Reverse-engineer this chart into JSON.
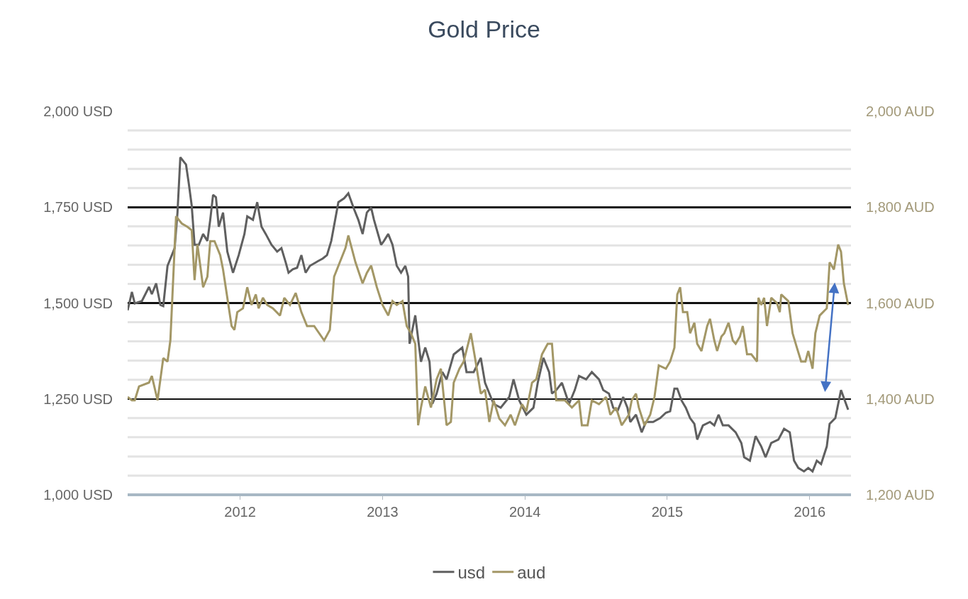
{
  "chart_data": {
    "type": "line",
    "title": "Gold Price",
    "x": [
      2011.21,
      2011.24,
      2011.26,
      2011.31,
      2011.36,
      2011.38,
      2011.41,
      2011.44,
      2011.46,
      2011.49,
      2011.54,
      2011.56,
      2011.58,
      2011.62,
      2011.64,
      2011.66,
      2011.68,
      2011.71,
      2011.74,
      2011.77,
      2011.79,
      2011.81,
      2011.83,
      2011.85,
      2011.88,
      2011.91,
      2011.95,
      2011.99,
      2012.03,
      2012.05,
      2012.09,
      2012.12,
      2012.15,
      2012.18,
      2012.22,
      2012.26,
      2012.29,
      2012.32,
      2012.34,
      2012.37,
      2012.4,
      2012.43,
      2012.46,
      2012.49,
      2012.55,
      2012.58,
      2012.61,
      2012.64,
      2012.69,
      2012.73,
      2012.76,
      2012.8,
      2012.83,
      2012.86,
      2012.89,
      2012.92,
      2012.94,
      2012.99,
      2013.01,
      2013.04,
      2013.07,
      2013.1,
      2013.13,
      2013.16,
      2013.18,
      2013.19,
      2013.23,
      2013.27,
      2013.3,
      2013.33,
      2013.35,
      2013.38,
      2013.42,
      2013.45,
      2013.5,
      2013.56,
      2013.59,
      2013.64,
      2013.69,
      2013.72,
      2013.78,
      2013.83,
      2013.89,
      2013.92,
      2013.96,
      2014.01,
      2014.06,
      2014.09,
      2014.13,
      2014.17,
      2014.19,
      2014.22,
      2014.26,
      2014.31,
      2014.35,
      2014.38,
      2014.43,
      2014.47,
      2014.52,
      2014.55,
      2014.59,
      2014.62,
      2014.65,
      2014.69,
      2014.72,
      2014.74,
      2014.78,
      2014.82,
      2014.85,
      2014.9,
      2014.95,
      2014.99,
      2015.02,
      2015.05,
      2015.07,
      2015.1,
      2015.13,
      2015.16,
      2015.19,
      2015.21,
      2015.25,
      2015.3,
      2015.33,
      2015.36,
      2015.39,
      2015.43,
      2015.48,
      2015.52,
      2015.54,
      2015.58,
      2015.62,
      2015.66,
      2015.69,
      2015.73,
      2015.78,
      2015.82,
      2015.86,
      2015.89,
      2015.92,
      2015.96,
      2015.99,
      2016.02,
      2016.05,
      2016.08,
      2016.12,
      2016.14,
      2016.18,
      2016.22,
      2016.27
    ],
    "series": [
      {
        "name": "usd",
        "color": "#5f5f5f",
        "values": [
          1481,
          1529,
          1499,
          1505,
          1542,
          1523,
          1551,
          1495,
          1492,
          1597,
          1643,
          1736,
          1880,
          1861,
          1810,
          1754,
          1652,
          1652,
          1680,
          1662,
          1717,
          1782,
          1776,
          1699,
          1736,
          1634,
          1579,
          1625,
          1680,
          1726,
          1717,
          1763,
          1699,
          1680,
          1652,
          1634,
          1643,
          1606,
          1579,
          1588,
          1592,
          1625,
          1579,
          1597,
          1610,
          1616,
          1625,
          1662,
          1763,
          1773,
          1786,
          1745,
          1717,
          1680,
          1736,
          1749,
          1717,
          1652,
          1662,
          1680,
          1652,
          1597,
          1579,
          1597,
          1569,
          1394,
          1468,
          1347,
          1384,
          1347,
          1237,
          1264,
          1320,
          1301,
          1366,
          1384,
          1320,
          1320,
          1357,
          1292,
          1237,
          1227,
          1255,
          1301,
          1246,
          1209,
          1227,
          1292,
          1357,
          1320,
          1264,
          1273,
          1292,
          1237,
          1273,
          1310,
          1301,
          1320,
          1301,
          1273,
          1264,
          1227,
          1218,
          1255,
          1227,
          1190,
          1209,
          1163,
          1190,
          1190,
          1200,
          1214,
          1218,
          1277,
          1277,
          1246,
          1227,
          1200,
          1185,
          1144,
          1181,
          1190,
          1181,
          1209,
          1181,
          1181,
          1163,
          1135,
          1098,
          1089,
          1153,
          1126,
          1098,
          1135,
          1144,
          1172,
          1163,
          1089,
          1070,
          1061,
          1070,
          1061,
          1089,
          1080,
          1126,
          1185,
          1200,
          1273,
          1222
        ]
      },
      {
        "name": "aud",
        "color": "#a39766",
        "axis": "y2",
        "x": [
          2011.21,
          2011.24,
          2011.26,
          2011.29,
          2011.36,
          2011.38,
          2011.42,
          2011.46,
          2011.49,
          2011.51,
          2011.55,
          2011.59,
          2011.63,
          2011.66,
          2011.68,
          2011.7,
          2011.72,
          2011.74,
          2011.77,
          2011.79,
          2011.82,
          2011.86,
          2011.88,
          2011.91,
          2011.94,
          2011.96,
          2011.98,
          2012.02,
          2012.05,
          2012.08,
          2012.11,
          2012.13,
          2012.16,
          2012.19,
          2012.23,
          2012.28,
          2012.31,
          2012.35,
          2012.39,
          2012.43,
          2012.47,
          2012.52,
          2012.59,
          2012.63,
          2012.66,
          2012.7,
          2012.74,
          2012.76,
          2012.81,
          2012.86,
          2012.89,
          2012.92,
          2012.96,
          2013.0,
          2013.04,
          2013.07,
          2013.1,
          2013.14,
          2013.17,
          2013.2,
          2013.23,
          2013.25,
          2013.27,
          2013.3,
          2013.34,
          2013.38,
          2013.41,
          2013.45,
          2013.48,
          2013.5,
          2013.54,
          2013.57,
          2013.62,
          2013.65,
          2013.69,
          2013.72,
          2013.75,
          2013.78,
          2013.82,
          2013.86,
          2013.9,
          2013.93,
          2013.98,
          2014.01,
          2014.05,
          2014.08,
          2014.12,
          2014.16,
          2014.19,
          2014.22,
          2014.28,
          2014.33,
          2014.38,
          2014.4,
          2014.44,
          2014.47,
          2014.52,
          2014.57,
          2014.6,
          2014.64,
          2014.68,
          2014.73,
          2014.75,
          2014.78,
          2014.8,
          2014.84,
          2014.88,
          2014.91,
          2014.94,
          2014.99,
          2015.02,
          2015.05,
          2015.07,
          2015.09,
          2015.11,
          2015.14,
          2015.16,
          2015.19,
          2015.21,
          2015.24,
          2015.28,
          2015.3,
          2015.33,
          2015.35,
          2015.38,
          2015.4,
          2015.43,
          2015.46,
          2015.48,
          2015.51,
          2015.53,
          2015.56,
          2015.59,
          2015.63,
          2015.64,
          2015.66,
          2015.68,
          2015.7,
          2015.73,
          2015.77,
          2015.79,
          2015.8,
          2015.85,
          2015.88,
          2015.91,
          2015.94,
          2015.97,
          2015.99,
          2016.02,
          2016.04,
          2016.07,
          2016.12,
          2016.14,
          2016.17,
          2016.2,
          2016.22,
          2016.24,
          2016.27
        ],
        "values": [
          1404,
          1397,
          1397,
          1426,
          1434,
          1448,
          1397,
          1485,
          1478,
          1522,
          1781,
          1766,
          1759,
          1752,
          1648,
          1722,
          1678,
          1633,
          1655,
          1729,
          1729,
          1700,
          1670,
          1611,
          1552,
          1544,
          1581,
          1589,
          1633,
          1596,
          1618,
          1589,
          1611,
          1596,
          1589,
          1574,
          1611,
          1596,
          1621,
          1581,
          1552,
          1552,
          1522,
          1544,
          1655,
          1685,
          1715,
          1741,
          1685,
          1641,
          1663,
          1678,
          1633,
          1596,
          1574,
          1604,
          1596,
          1604,
          1552,
          1537,
          1515,
          1345,
          1382,
          1426,
          1382,
          1441,
          1463,
          1345,
          1352,
          1434,
          1463,
          1478,
          1537,
          1485,
          1411,
          1419,
          1352,
          1397,
          1359,
          1345,
          1367,
          1345,
          1389,
          1374,
          1434,
          1441,
          1493,
          1515,
          1515,
          1397,
          1397,
          1382,
          1397,
          1345,
          1345,
          1397,
          1389,
          1404,
          1367,
          1382,
          1345,
          1367,
          1397,
          1411,
          1382,
          1345,
          1367,
          1404,
          1470,
          1463,
          1478,
          1507,
          1618,
          1633,
          1581,
          1581,
          1537,
          1559,
          1515,
          1500,
          1552,
          1567,
          1522,
          1500,
          1530,
          1537,
          1559,
          1522,
          1515,
          1530,
          1552,
          1493,
          1493,
          1478,
          1611,
          1596,
          1611,
          1552,
          1611,
          1600,
          1581,
          1618,
          1604,
          1537,
          1507,
          1478,
          1478,
          1500,
          1463,
          1537,
          1574,
          1589,
          1685,
          1670,
          1722,
          1707,
          1641,
          1596
        ]
      }
    ],
    "xlim": [
      2011.21,
      2016.29
    ],
    "xticks": [
      2012,
      2013,
      2014,
      2015,
      2016
    ],
    "ylim": [
      1000,
      2000
    ],
    "yticks": [
      {
        "value": 1000,
        "label": "1,000 USD"
      },
      {
        "value": 1050,
        "label": null
      },
      {
        "value": 1100,
        "label": null
      },
      {
        "value": 1150,
        "label": null
      },
      {
        "value": 1200,
        "label": null
      },
      {
        "value": 1250,
        "label": "1,250 USD"
      },
      {
        "value": 1300,
        "label": null
      },
      {
        "value": 1350,
        "label": null
      },
      {
        "value": 1400,
        "label": null
      },
      {
        "value": 1450,
        "label": null
      },
      {
        "value": 1500,
        "label": "1,500 USD"
      },
      {
        "value": 1550,
        "label": null
      },
      {
        "value": 1600,
        "label": null
      },
      {
        "value": 1650,
        "label": null
      },
      {
        "value": 1700,
        "label": null
      },
      {
        "value": 1750,
        "label": "1,750 USD"
      },
      {
        "value": 1800,
        "label": null
      },
      {
        "value": 1850,
        "label": null
      },
      {
        "value": 1900,
        "label": null
      },
      {
        "value": 1950,
        "label": null
      },
      {
        "value": 2000,
        "label": "2,000 USD"
      }
    ],
    "y2lim": [
      1200,
      2000
    ],
    "y2ticks": [
      {
        "value": 1200,
        "label": "1,200 AUD"
      },
      {
        "value": 1400,
        "label": "1,400 AUD"
      },
      {
        "value": 1600,
        "label": "1,600 AUD"
      },
      {
        "value": 1800,
        "label": "1,800 AUD"
      },
      {
        "value": 2000,
        "label": "2,000 AUD"
      }
    ],
    "grid": "y",
    "legend": "bottom",
    "marker": "none",
    "line_style": "solid"
  }
}
